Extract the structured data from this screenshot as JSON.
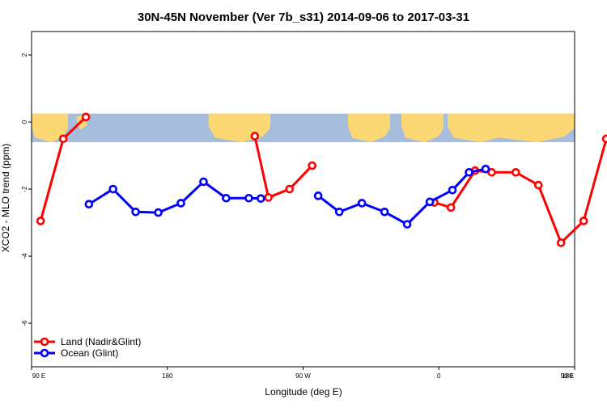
{
  "chart_data": {
    "type": "line",
    "title": "30N-45N November (Ver 7b_s31)   2014-09-06 to 2017-03-31",
    "xlabel": "Longitude (deg E)",
    "ylabel": "XCO2 - MLO trend (ppm)",
    "xlim": [
      90,
      450
    ],
    "ylim": [
      -7.3,
      2.7
    ],
    "x_ticks": [
      {
        "value": 90,
        "label": "90 E"
      },
      {
        "value": 180,
        "label": "180"
      },
      {
        "value": 270,
        "label": "90 W"
      },
      {
        "value": 360,
        "label": "0"
      },
      {
        "value": 450,
        "label": "90 E"
      },
      {
        "value": 540,
        "label": "180"
      }
    ],
    "y_ticks": [
      {
        "value": 2,
        "label": "2"
      },
      {
        "value": 0,
        "label": "0"
      },
      {
        "value": -2,
        "label": "-2"
      },
      {
        "value": -4,
        "label": "-4"
      },
      {
        "value": -6,
        "label": "-6"
      }
    ],
    "map_band": {
      "y_top": 0.25,
      "y_bottom": -0.6,
      "ocean_color": "#a7bddc",
      "land_color": "#fcd874"
    },
    "legend": {
      "position": "bottom-left"
    },
    "series": [
      {
        "name": "Land (Nadir&Glint)",
        "color": "#ff0000",
        "segments": [
          {
            "x": [
              96,
              111,
              126
            ],
            "y": [
              -2.95,
              -0.5,
              0.15
            ]
          },
          {
            "x": [
              238,
              247,
              261,
              276
            ],
            "y": [
              -0.42,
              -2.25,
              -2.0,
              -1.3
            ]
          },
          {
            "x": [
              357,
              368,
              384,
              395,
              411,
              426,
              441,
              456,
              471,
              486
            ],
            "y": [
              -2.4,
              -2.55,
              -1.45,
              -1.5,
              -1.5,
              -1.88,
              -3.6,
              -2.95,
              -0.5,
              0.15
            ]
          }
        ]
      },
      {
        "name": "Ocean (Glint)",
        "color": "#0000ff",
        "segments": [
          {
            "x": [
              128,
              144,
              159,
              174,
              189,
              204,
              219,
              234,
              242
            ],
            "y": [
              -2.45,
              -2.0,
              -2.68,
              -2.7,
              -2.42,
              -1.78,
              -2.27,
              -2.27,
              -2.28
            ]
          },
          {
            "x": [
              280,
              294,
              309,
              324,
              339,
              354,
              369,
              380,
              391
            ],
            "y": [
              -2.2,
              -2.68,
              -2.42,
              -2.68,
              -3.05,
              -2.38,
              -2.03,
              -1.5,
              -1.4
            ]
          },
          {
            "x": [
              490,
              505,
              520,
              535
            ],
            "y": [
              -2.45,
              -2.0,
              -2.68,
              -2.7
            ]
          }
        ]
      }
    ]
  }
}
